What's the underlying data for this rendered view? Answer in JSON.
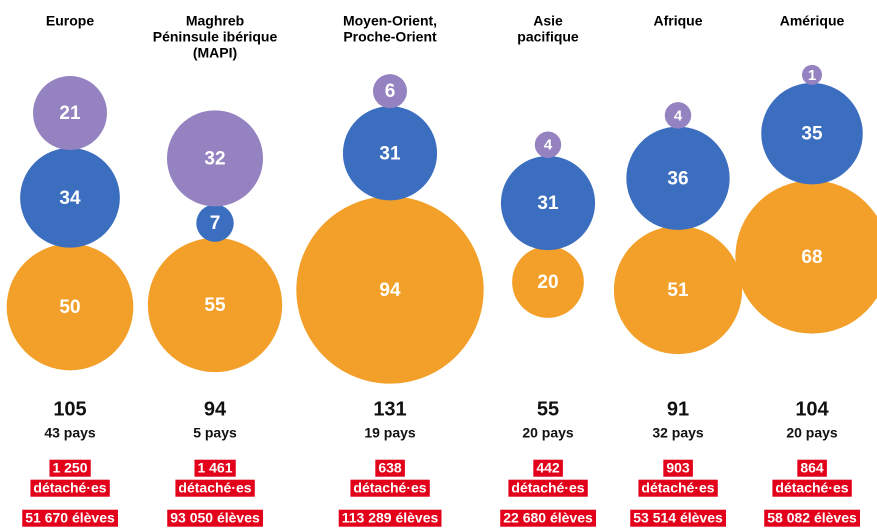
{
  "colors": {
    "purple": "#9582c0",
    "blue": "#3c6ebf",
    "orange": "#f3a02a"
  },
  "detached_label": "détaché·es",
  "regions": [
    {
      "name": [
        "Europe"
      ],
      "bubbles": {
        "purple": 21,
        "blue": 34,
        "orange": 50
      },
      "total": 105,
      "countries": "43 pays",
      "detached": "1 250",
      "students": "51 670 élèves"
    },
    {
      "name": [
        "Maghreb",
        "Péninsule ibérique",
        "(MAPI)"
      ],
      "bubbles": {
        "purple": 32,
        "blue": 7,
        "orange": 55
      },
      "total": 94,
      "countries": "5 pays",
      "detached": "1 461",
      "students": "93 050 élèves"
    },
    {
      "name": [
        "Moyen-Orient,",
        "Proche-Orient"
      ],
      "bubbles": {
        "purple": 6,
        "blue": 31,
        "orange": 94
      },
      "total": 131,
      "countries": "19 pays",
      "detached": "638",
      "students": "113 289 élèves"
    },
    {
      "name": [
        "Asie",
        "pacifique"
      ],
      "bubbles": {
        "purple": 4,
        "blue": 31,
        "orange": 20
      },
      "total": 55,
      "countries": "20 pays",
      "detached": "442",
      "students": "22 680 élèves"
    },
    {
      "name": [
        "Afrique"
      ],
      "bubbles": {
        "purple": 4,
        "blue": 36,
        "orange": 51
      },
      "total": 91,
      "countries": "32 pays",
      "detached": "903",
      "students": "53 514 élèves"
    },
    {
      "name": [
        "Amérique"
      ],
      "bubbles": {
        "purple": 1,
        "blue": 35,
        "orange": 68
      },
      "total": 104,
      "countries": "20 pays",
      "detached": "864",
      "students": "58 082 élèves"
    }
  ]
}
